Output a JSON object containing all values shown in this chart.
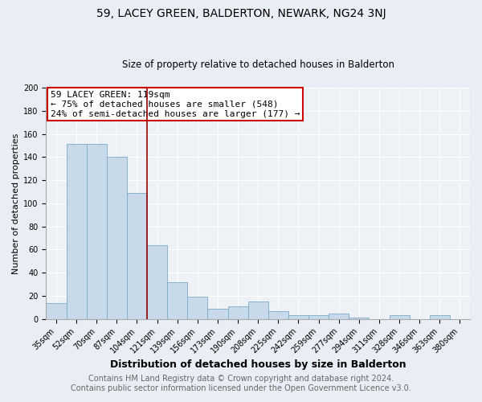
{
  "title": "59, LACEY GREEN, BALDERTON, NEWARK, NG24 3NJ",
  "subtitle": "Size of property relative to detached houses in Balderton",
  "xlabel": "Distribution of detached houses by size in Balderton",
  "ylabel": "Number of detached properties",
  "bar_color": "#c8d9ea",
  "bar_edge_color": "#7aaac8",
  "categories": [
    "35sqm",
    "52sqm",
    "70sqm",
    "87sqm",
    "104sqm",
    "121sqm",
    "139sqm",
    "156sqm",
    "173sqm",
    "190sqm",
    "208sqm",
    "225sqm",
    "242sqm",
    "259sqm",
    "277sqm",
    "294sqm",
    "311sqm",
    "328sqm",
    "346sqm",
    "363sqm",
    "380sqm"
  ],
  "values": [
    14,
    151,
    151,
    140,
    109,
    64,
    32,
    19,
    9,
    11,
    15,
    7,
    3,
    3,
    5,
    1,
    0,
    3,
    0,
    3,
    0
  ],
  "vline_index": 4.5,
  "vline_color": "#990000",
  "ylim": [
    0,
    200
  ],
  "yticks": [
    0,
    20,
    40,
    60,
    80,
    100,
    120,
    140,
    160,
    180,
    200
  ],
  "annotation_title": "59 LACEY GREEN: 119sqm",
  "annotation_line1": "← 75% of detached houses are smaller (548)",
  "annotation_line2": "24% of semi-detached houses are larger (177) →",
  "footer1": "Contains HM Land Registry data © Crown copyright and database right 2024.",
  "footer2": "Contains public sector information licensed under the Open Government Licence v3.0.",
  "fig_bg_color": "#e8eef4",
  "plot_bg_color": "#eef2f7",
  "grid_color": "#ffffff",
  "title_fontsize": 10,
  "subtitle_fontsize": 8.5,
  "xlabel_fontsize": 9,
  "ylabel_fontsize": 8,
  "tick_fontsize": 7,
  "footer_fontsize": 7,
  "ann_fontsize": 8
}
